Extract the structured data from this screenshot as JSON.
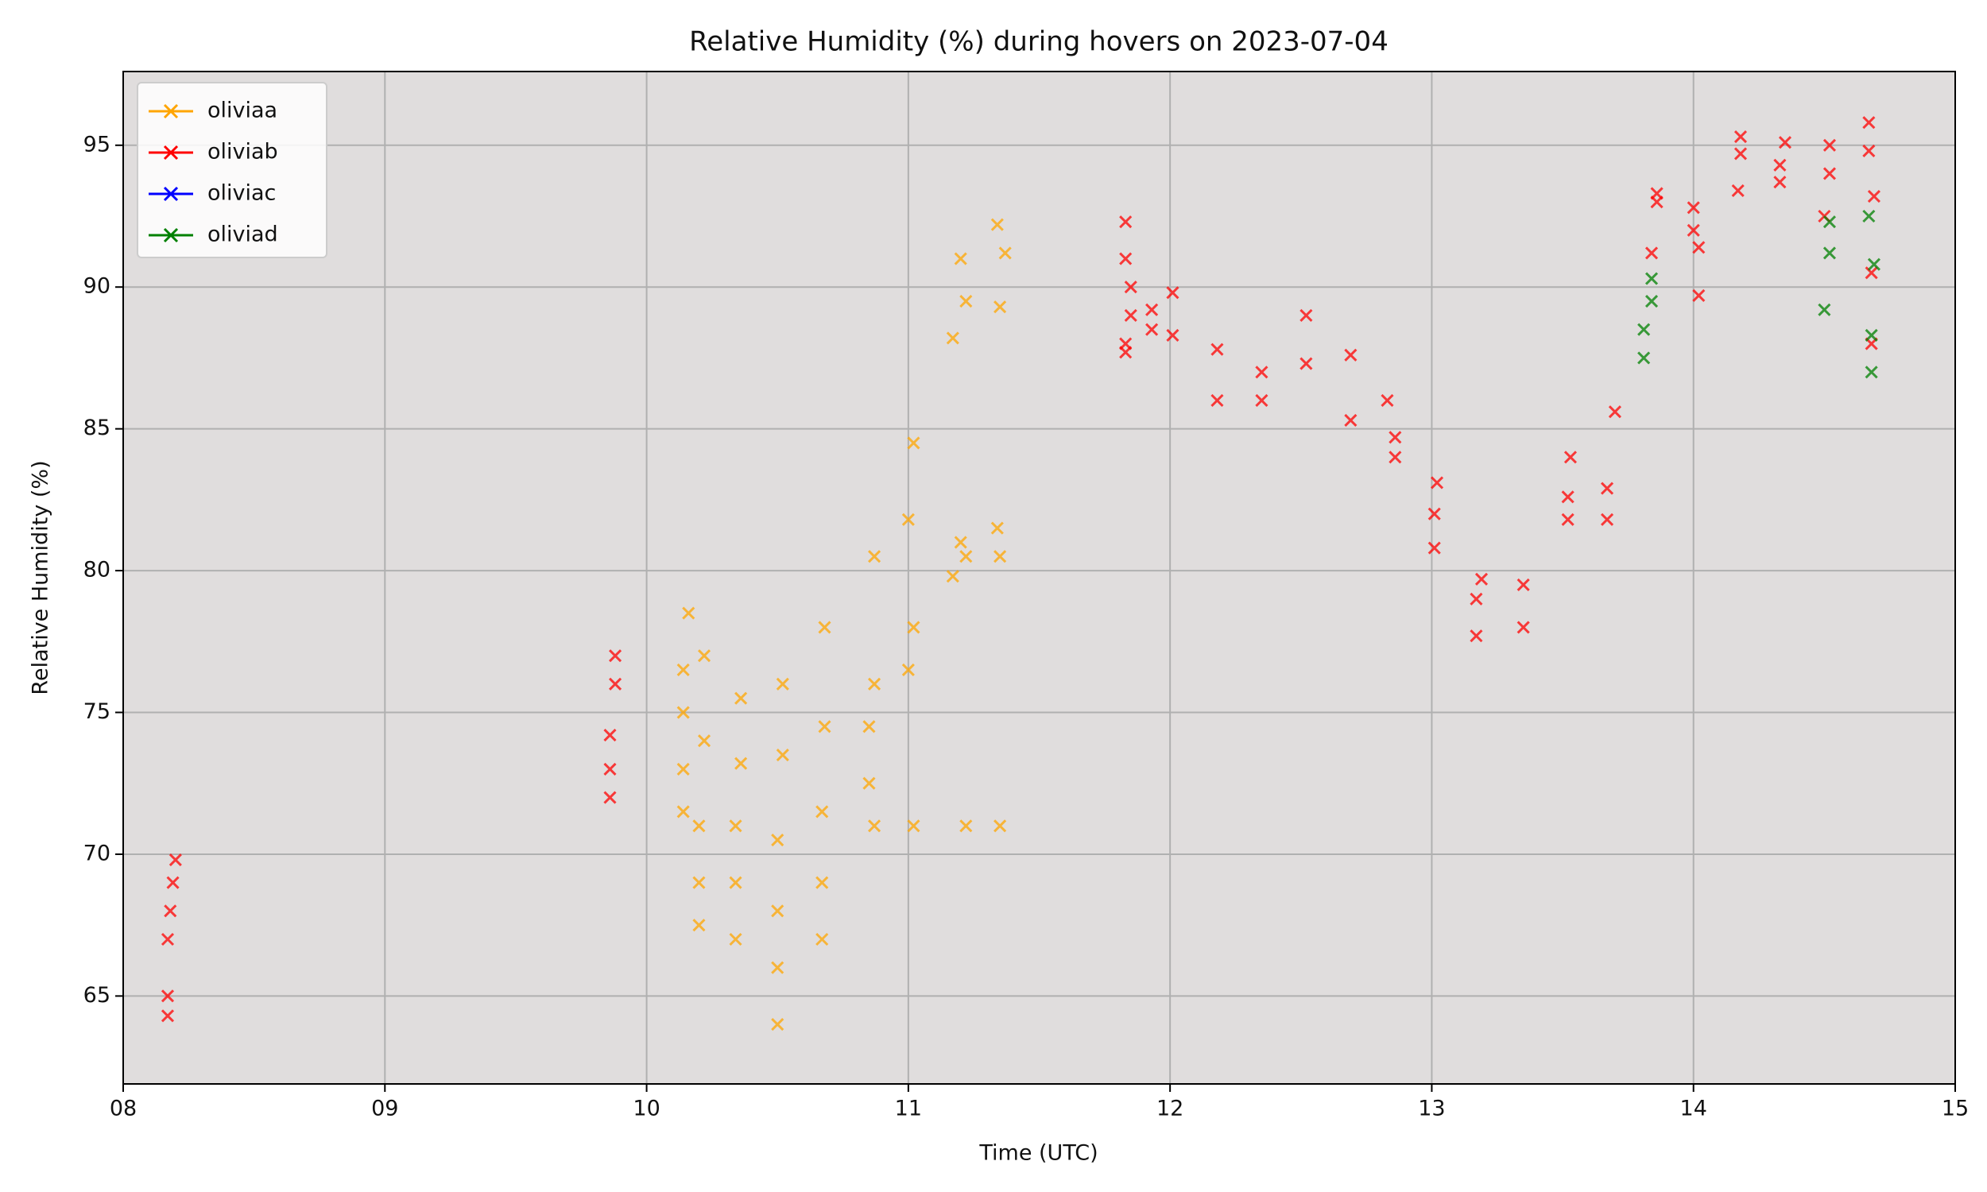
{
  "chart_data": {
    "type": "scatter",
    "title": "Relative Humidity (%) during hovers on 2023-07-04",
    "x_label": "Time (UTC)",
    "y_label": "Relative Humidity (%)",
    "xlim": [
      8,
      15
    ],
    "ylim": [
      61.9,
      97.6
    ],
    "xticks": [
      {
        "value": 8,
        "label": "08"
      },
      {
        "value": 9,
        "label": "09"
      },
      10,
      11,
      12,
      13,
      14,
      15
    ],
    "yticks": [
      65,
      70,
      75,
      80,
      85,
      90,
      95
    ],
    "grid": true,
    "legend": "upper left",
    "background": "#e0dddd",
    "series": [
      {
        "name": "oliviaa",
        "color": "#ffa500",
        "x": [
          10.14,
          10.14,
          10.14,
          10.14,
          10.16,
          10.2,
          10.2,
          10.2,
          10.22,
          10.22,
          10.34,
          10.34,
          10.34,
          10.36,
          10.36,
          10.5,
          10.5,
          10.5,
          10.5,
          10.52,
          10.52,
          10.67,
          10.67,
          10.67,
          10.68,
          10.68,
          10.85,
          10.85,
          10.87,
          10.87,
          10.87,
          11.0,
          11.0,
          11.02,
          11.02,
          11.02,
          11.17,
          11.17,
          11.2,
          11.2,
          11.22,
          11.22,
          11.22,
          11.34,
          11.34,
          11.35,
          11.35,
          11.35,
          11.37
        ],
        "values": [
          71.5,
          73,
          75,
          76.5,
          78.5,
          67.5,
          69,
          71,
          74,
          77,
          67,
          69,
          71,
          73.2,
          75.5,
          64,
          66,
          68,
          70.5,
          73.5,
          76,
          67,
          69,
          71.5,
          74.5,
          78,
          72.5,
          74.5,
          71,
          76,
          80.5,
          76.5,
          81.8,
          71,
          78,
          84.5,
          79.8,
          88.2,
          81,
          91,
          71,
          80.5,
          89.5,
          81.5,
          92.2,
          71,
          80.5,
          89.3,
          91.2
        ]
      },
      {
        "name": "oliviab",
        "color": "#ff0000",
        "x": [
          8.17,
          8.17,
          8.17,
          8.18,
          8.19,
          8.2,
          9.86,
          9.86,
          9.86,
          9.88,
          9.88,
          11.83,
          11.83,
          11.83,
          11.83,
          11.85,
          11.85,
          11.93,
          11.93,
          12.01,
          12.01,
          12.18,
          12.18,
          12.35,
          12.35,
          12.52,
          12.52,
          12.69,
          12.69,
          12.83,
          12.86,
          12.86,
          13.01,
          13.01,
          13.02,
          13.17,
          13.17,
          13.19,
          13.35,
          13.35,
          13.52,
          13.52,
          13.53,
          13.67,
          13.67,
          13.7,
          13.84,
          13.86,
          13.86,
          14.0,
          14.0,
          14.02,
          14.02,
          14.17,
          14.18,
          14.18,
          14.33,
          14.33,
          14.35,
          14.5,
          14.52,
          14.52,
          14.67,
          14.67,
          14.68,
          14.68,
          14.69
        ],
        "values": [
          64.3,
          65,
          67,
          68,
          69,
          69.8,
          72,
          73,
          74.2,
          76,
          77,
          92.3,
          91,
          88,
          87.7,
          90,
          89,
          88.5,
          89.2,
          88.3,
          89.8,
          86,
          87.8,
          86,
          87,
          87.3,
          89,
          85.3,
          87.6,
          86,
          84,
          84.7,
          80.8,
          82,
          83.1,
          77.7,
          79,
          79.7,
          78,
          79.5,
          81.8,
          82.6,
          84,
          82.9,
          81.8,
          85.6,
          91.2,
          93,
          93.3,
          92,
          92.8,
          89.7,
          91.4,
          93.4,
          94.7,
          95.3,
          93.7,
          94.3,
          95.1,
          92.5,
          94,
          95,
          94.8,
          95.8,
          88,
          90.5,
          93.2
        ]
      },
      {
        "name": "oliviac",
        "color": "#0000ff",
        "x": [],
        "values": []
      },
      {
        "name": "oliviad",
        "color": "#008000",
        "x": [
          13.81,
          13.81,
          13.84,
          13.84,
          14.5,
          14.52,
          14.52,
          14.67,
          14.68,
          14.68,
          14.69
        ],
        "values": [
          87.5,
          88.5,
          89.5,
          90.3,
          89.2,
          91.2,
          92.3,
          92.5,
          87,
          88.3,
          90.8
        ]
      }
    ]
  }
}
